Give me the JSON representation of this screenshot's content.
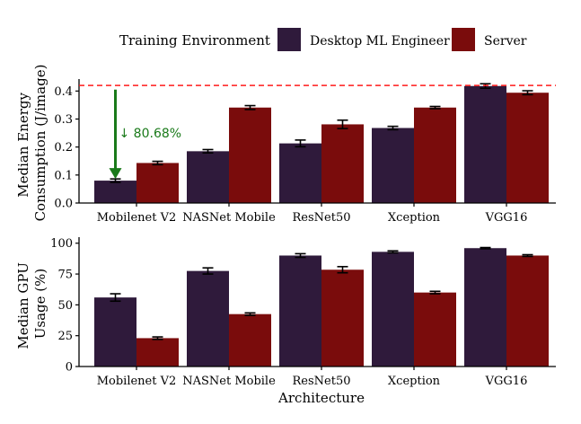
{
  "legend": {
    "title": "Training Environment",
    "entries": [
      {
        "name": "Desktop ML Engineer",
        "color": "#2f1a3b"
      },
      {
        "name": "Server",
        "color": "#7a0c0c"
      }
    ]
  },
  "xlabel": "Architecture",
  "chart_data": [
    {
      "type": "bar",
      "ylabel": [
        "Median Energy",
        "Consumption (J/image)"
      ],
      "categories": [
        "Mobilenet V2",
        "NASNet Mobile",
        "ResNet50",
        "Xception",
        "VGG16"
      ],
      "yticks": [
        0.0,
        0.1,
        0.2,
        0.3,
        0.4
      ],
      "ytick_labels": [
        "0.0",
        "0.1",
        "0.2",
        "0.3",
        "0.4"
      ],
      "ylim": [
        0,
        0.43
      ],
      "series": [
        {
          "name": "Desktop ML Engineer",
          "values": [
            0.08,
            0.185,
            0.213,
            0.268,
            0.418
          ],
          "errors": [
            0.006,
            0.006,
            0.012,
            0.006,
            0.008
          ]
        },
        {
          "name": "Server",
          "values": [
            0.143,
            0.341,
            0.281,
            0.341,
            0.394
          ],
          "errors": [
            0.006,
            0.007,
            0.015,
            0.004,
            0.007
          ]
        }
      ],
      "reference_line": {
        "y": 0.42,
        "color": "#ff1a1a"
      },
      "annotation": {
        "text": "↓ 80.68%",
        "from": 0.418,
        "to": 0.08,
        "category": "Mobilenet V2",
        "color": "#1a7a1a"
      }
    },
    {
      "type": "bar",
      "ylabel": [
        "Median GPU",
        "Usage (%)"
      ],
      "categories": [
        "Mobilenet V2",
        "NASNet Mobile",
        "ResNet50",
        "Xception",
        "VGG16"
      ],
      "yticks": [
        0,
        25,
        50,
        75,
        100
      ],
      "ytick_labels": [
        "0",
        "25",
        "50",
        "75",
        "100"
      ],
      "ylim": [
        0,
        102
      ],
      "series": [
        {
          "name": "Desktop ML Engineer",
          "values": [
            56,
            77.5,
            90,
            93,
            96
          ],
          "errors": [
            3,
            2.5,
            1.5,
            0.8,
            0.5
          ]
        },
        {
          "name": "Server",
          "values": [
            23,
            42.5,
            78.5,
            60,
            90
          ],
          "errors": [
            1,
            1,
            2.5,
            1,
            0.7
          ]
        }
      ]
    }
  ]
}
